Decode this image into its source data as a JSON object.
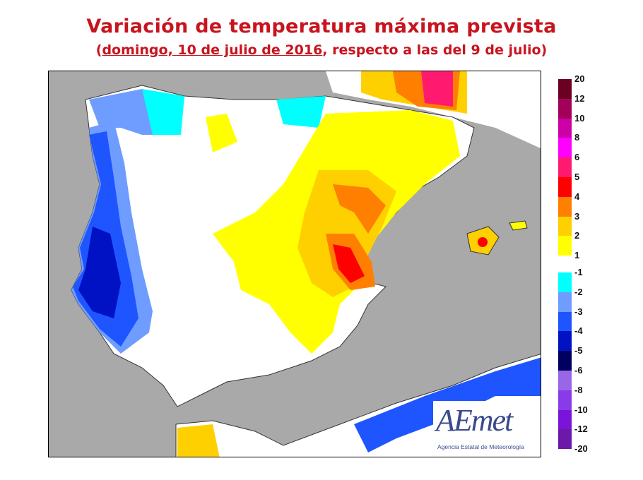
{
  "title": "Variación de temperatura máxima prevista",
  "subtitle": {
    "open": "(",
    "date": "domingo, 10 de julio de 2016",
    "rest": ", respecto a las del 9 de julio)"
  },
  "legend": {
    "warm": {
      "labels": [
        "20",
        "12",
        "10",
        "8",
        "6",
        "5",
        "4",
        "3",
        "2",
        "1"
      ],
      "colors": [
        "#6b0022",
        "#a3005a",
        "#cc00a6",
        "#ff00ff",
        "#ff1a70",
        "#ff0000",
        "#ff8000",
        "#ffd000",
        "#ffff00"
      ]
    },
    "cool": {
      "labels": [
        "-1",
        "-2",
        "-3",
        "-4",
        "-5",
        "-6",
        "-8",
        "-10",
        "-12",
        "-20"
      ],
      "colors": [
        "#00ffff",
        "#6f9cff",
        "#1f55ff",
        "#0012c4",
        "#00005e",
        "#9a66e8",
        "#8a3be8",
        "#7a14d8",
        "#6c18a8"
      ]
    }
  },
  "logo": {
    "name": "AEmet",
    "caption": "Agencia Estatal de Meteorología"
  },
  "colors": {
    "sea": "#a9a9a9",
    "land": "#ffffff",
    "title": "#c8141e"
  }
}
